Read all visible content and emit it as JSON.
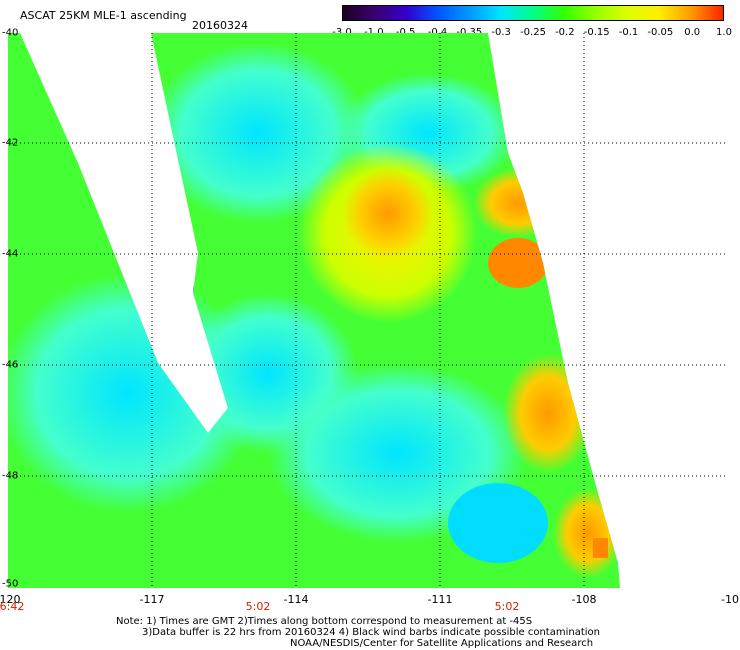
{
  "header": {
    "title": "ASCAT 25KM MLE-1 ascending",
    "date": "20160324"
  },
  "colorbar": {
    "labels": [
      "-3.0",
      "-1.0",
      "-0.5",
      "-0.4",
      "-0.35",
      "-0.3",
      "-0.25",
      "-0.2",
      "-0.15",
      "-0.1",
      "-0.05",
      "0.0",
      "1.0"
    ],
    "stops": [
      "#1a0022",
      "#3a0070",
      "#3300cc",
      "#0055ff",
      "#0099ff",
      "#00e5ff",
      "#00ff88",
      "#33ff00",
      "#99ff00",
      "#ddff00",
      "#ffee00",
      "#ff9900",
      "#ff2200"
    ]
  },
  "axes": {
    "x_ticks": [
      "-120",
      "-117",
      "-114",
      "-111",
      "-108",
      "-10"
    ],
    "y_ticks": [
      "-40",
      "-42",
      "-44",
      "-46",
      "-48",
      "-50"
    ]
  },
  "time_labels": [
    "6:42",
    "5:02",
    "5:02"
  ],
  "notes": {
    "line1": "Note: 1) Times are GMT 2)Times along bottom correspond to measurement at -45S",
    "line2": "3)Data buffer is 22 hrs from 20160324 4) Black wind barbs indicate possible contamination",
    "line3": "NOAA/NESDIS/Center for Satellite Applications and Research"
  }
}
